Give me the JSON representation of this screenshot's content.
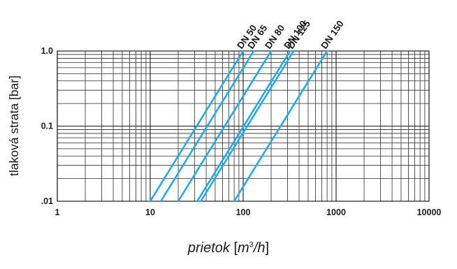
{
  "chart_data": {
    "type": "line",
    "title": "",
    "xscale": "log",
    "yscale": "log",
    "xlim": [
      1,
      10000
    ],
    "ylim": [
      0.01,
      1.0
    ],
    "grid": true,
    "x_ticks": [
      {
        "value": 1,
        "label": "1"
      },
      {
        "value": 10,
        "label": "10"
      },
      {
        "value": 100,
        "label": "100"
      },
      {
        "value": 1000,
        "label": "1000"
      },
      {
        "value": 10000,
        "label": "10000"
      }
    ],
    "y_ticks": [
      {
        "value": 1.0,
        "label": "1.0"
      },
      {
        "value": 0.1,
        "label": "0.1"
      },
      {
        "value": 0.01,
        "label": ".01"
      }
    ],
    "ylabel": "tlaková strata [bar]",
    "xlabel": {
      "word": "prietok",
      "open": " [",
      "unit_base": "m",
      "unit_exp": "3",
      "unit_rest": "/h",
      "close": "]"
    },
    "line_color": "#29a8e0",
    "series": [
      {
        "name": "DN 50",
        "x": [
          10,
          100
        ],
        "y": [
          0.01,
          1.0
        ]
      },
      {
        "name": "DN 65",
        "x": [
          13,
          130
        ],
        "y": [
          0.01,
          1.0
        ]
      },
      {
        "name": "DN 80",
        "x": [
          20,
          200
        ],
        "y": [
          0.01,
          1.0
        ]
      },
      {
        "name": "DN 100",
        "x": [
          32,
          320
        ],
        "y": [
          0.01,
          1.0
        ]
      },
      {
        "name": "DN 125",
        "x": [
          35,
          350
        ],
        "y": [
          0.01,
          1.0
        ]
      },
      {
        "name": "DN 150",
        "x": [
          80,
          800
        ],
        "y": [
          0.01,
          1.0
        ]
      }
    ]
  }
}
